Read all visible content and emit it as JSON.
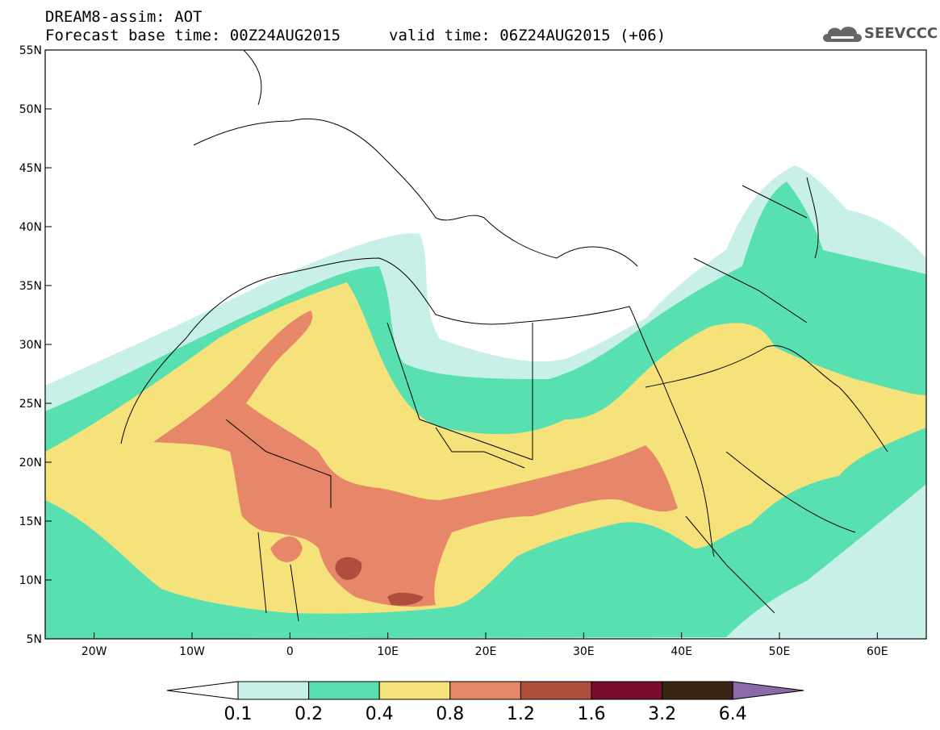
{
  "header": {
    "title": "DREAM8-assim: AOT",
    "base_time": "Forecast base time: 00Z24AUG2015",
    "valid_time": "valid time: 06Z24AUG2015 (+06)"
  },
  "logo": {
    "text": "SEEVCCC",
    "icon": "cloud-icon"
  },
  "map": {
    "lon_range": [
      -25,
      65
    ],
    "lat_range": [
      5,
      55
    ],
    "lat_ticks": [
      "55N",
      "50N",
      "45N",
      "40N",
      "35N",
      "30N",
      "25N",
      "20N",
      "15N",
      "10N",
      "5N"
    ],
    "lon_ticks": [
      "20W",
      "10W",
      "0",
      "10E",
      "20E",
      "30E",
      "40E",
      "50E",
      "60E"
    ],
    "background": "#ffffff",
    "borders_color": "#000000"
  },
  "colorbar": {
    "labels": [
      "0.1",
      "0.2",
      "0.4",
      "0.8",
      "1.2",
      "1.6",
      "3.2",
      "6.4"
    ],
    "colors": [
      "#ffffff",
      "#c8f0e8",
      "#58e0b0",
      "#f5e27a",
      "#e6876a",
      "#b04e3e",
      "#7a0e2e",
      "#3a2414",
      "#8a6aa8"
    ]
  }
}
